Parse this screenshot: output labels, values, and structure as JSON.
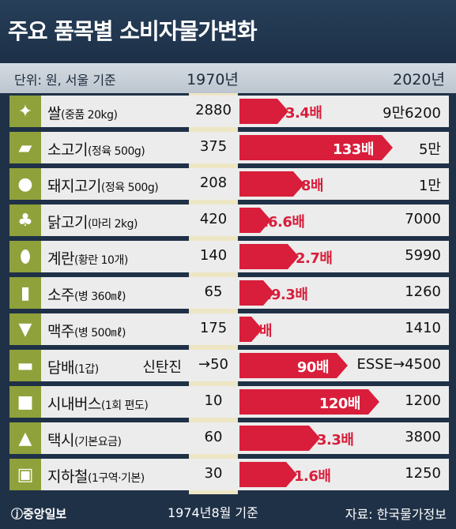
{
  "title": "주요 품목별 소비자물가변화",
  "header": {
    "unit": "단위: 원, 서울 기준",
    "year1": "1970년",
    "year2": "2020년"
  },
  "footer": {
    "logo": "ⓙ중앙일보",
    "note": "1974년8월 기준",
    "source": "자료: 한국물가정보"
  },
  "chart_data": {
    "type": "bar",
    "title": "주요 품목별 소비자물가변화",
    "units": "원",
    "categories": [
      "쌀(중품 20kg)",
      "소고기(정육 500g)",
      "돼지고기(정육 500g)",
      "닭고기(마리 2kg)",
      "계란(황란 10개)",
      "소주(병 360㎖)",
      "맥주(병 500㎖)",
      "담배(1갑)",
      "시내버스(1회 편도)",
      "택시(기본요금)",
      "지하철(1구역·기본)"
    ],
    "series": [
      {
        "name": "1970년",
        "values": [
          2880,
          375,
          208,
          420,
          140,
          65,
          175,
          50,
          10,
          60,
          30
        ]
      },
      {
        "name": "2020년",
        "values": [
          96200,
          50000,
          10000,
          7000,
          5990,
          1260,
          1410,
          4500,
          1200,
          3800,
          1250
        ]
      }
    ],
    "multipliers": [
      33.4,
      133,
      48,
      16.6,
      42.7,
      19.3,
      8,
      90,
      120,
      63.3,
      41.6
    ]
  },
  "rows": [
    {
      "name": "쌀",
      "spec": "(중품 20kg)",
      "icon": "wheat-icon",
      "glyph": "✦",
      "v1970": "2880",
      "pre1970": "",
      "mult": "33.4배",
      "v2020": "9만6200"
    },
    {
      "name": "소고기",
      "spec": "(정육 500g)",
      "icon": "cow-icon",
      "glyph": "▰",
      "v1970": "375",
      "pre1970": "",
      "mult": "133배",
      "v2020": "5만"
    },
    {
      "name": "돼지고기",
      "spec": "(정육 500g)",
      "icon": "pig-icon",
      "glyph": "●",
      "v1970": "208",
      "pre1970": "",
      "mult": "48배",
      "v2020": "1만"
    },
    {
      "name": "닭고기",
      "spec": "(마리 2kg)",
      "icon": "rooster-icon",
      "glyph": "♣",
      "v1970": "420",
      "pre1970": "",
      "mult": "16.6배",
      "v2020": "7000"
    },
    {
      "name": "계란",
      "spec": "(황란 10개)",
      "icon": "egg-icon",
      "glyph": "⬮",
      "v1970": "140",
      "pre1970": "",
      "mult": "42.7배",
      "v2020": "5990"
    },
    {
      "name": "소주",
      "spec": "(병 360㎖)",
      "icon": "soju-bottle-icon",
      "glyph": "▮",
      "v1970": "65",
      "pre1970": "",
      "mult": "19.3배",
      "v2020": "1260"
    },
    {
      "name": "맥주",
      "spec": "(병 500㎖)",
      "icon": "beer-glass-icon",
      "glyph": "▼",
      "v1970": "175",
      "pre1970": "",
      "mult": "8배",
      "v2020": "1410"
    },
    {
      "name": "담배",
      "spec": "(1갑)",
      "icon": "cigarette-icon",
      "glyph": "▬",
      "v1970": "→50",
      "pre1970": "신탄진",
      "mult": "90배",
      "v2020": "ESSE→4500"
    },
    {
      "name": "시내버스",
      "spec": "(1회 편도)",
      "icon": "bus-icon",
      "glyph": "■",
      "v1970": "10",
      "pre1970": "",
      "mult": "120배",
      "v2020": "1200"
    },
    {
      "name": "택시",
      "spec": "(기본요금)",
      "icon": "taxi-icon",
      "glyph": "▲",
      "v1970": "60",
      "pre1970": "",
      "mult": "63.3배",
      "v2020": "3800"
    },
    {
      "name": "지하철",
      "spec": "(1구역·기본)",
      "icon": "train-icon",
      "glyph": "▣",
      "v1970": "30",
      "pre1970": "",
      "mult": "41.6배",
      "v2020": "1250"
    }
  ]
}
